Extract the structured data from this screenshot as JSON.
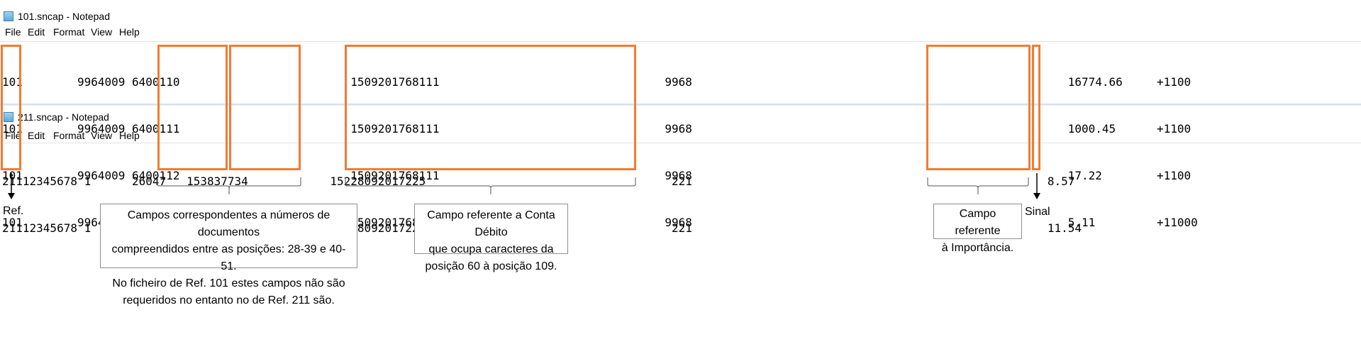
{
  "win1": {
    "title": "101.sncap - Notepad",
    "menu": [
      "File",
      "Edit",
      "Format",
      "View",
      "Help"
    ],
    "lines": [
      "101        9964009 6400110                         1509201768111                                 9968                                                       16774.66     +1100",
      "101        9964009 6400111                         1509201768111                                 9968                                                       1000.45      +1100",
      "101        9964009 6400112                         1509201768111                                 9968                                                       17.22        +1100",
      "101        9964009 6400113                         1509201768111                                 9968                                                       5.11         +11000"
    ]
  },
  "win2": {
    "title": "211.sncap - Notepad",
    "menu": [
      "File",
      "Edit",
      "Format",
      "View",
      "Help"
    ],
    "lines": [
      "21112345678 1      26047   153837734            15228092017225                                    221                                                    8.57",
      "21112345678 1      26047   153837734            15228092017225                                    221                                                    11.54"
    ]
  },
  "annotations": {
    "ref_label": "Ref.",
    "sinal_label": "Sinal",
    "doc_numbers": "Campos correspondentes a números de documentos\ncompreendidos entre as posições: 28-39 e 40-51.\nNo ficheiro de Ref. 101 estes campos não são\nrequeridos  no entanto no de Ref. 211 são.",
    "conta_debito": "Campo referente a Conta Débito\nque ocupa caracteres da\nposição 60 à posição 109.",
    "importancia": "Campo referente\nà Importância."
  },
  "colors": {
    "highlight": "#f27b35",
    "caption_border": "#8f8f8f"
  }
}
